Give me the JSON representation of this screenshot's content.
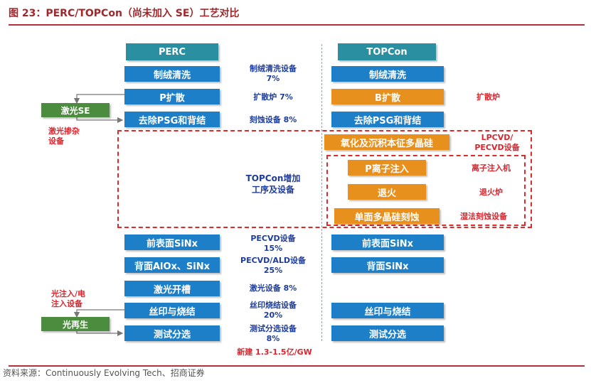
{
  "title": "图 23：PERC/TOPCon（尚未加入 SE）工艺对比",
  "perc": {
    "header": "PERC",
    "steps": [
      "制绒清洗",
      "P扩散",
      "去除PSG和背结",
      "前表面SiNx",
      "背面AlOx、SiNx",
      "激光开槽",
      "丝印与烧结",
      "测试分选"
    ]
  },
  "topcon": {
    "header": "TOPCon",
    "steps": [
      "制绒清洗",
      "B扩散",
      "去除PSG和背结",
      "氧化及沉积本征多晶硅",
      "P离子注入",
      "退火",
      "单面多晶硅刻蚀",
      "前表面SiNx",
      "背面SiNx",
      "丝印与烧结",
      "测试分选"
    ]
  },
  "equipment": [
    {
      "line1": "制绒清洗设备",
      "line2": "7%"
    },
    {
      "line1": "扩散炉 7%",
      "line2": ""
    },
    {
      "line1": "刻蚀设备 8%",
      "line2": ""
    },
    {
      "line1": "PECVD设备",
      "line2": "15%"
    },
    {
      "line1": "PECVD/ALD设备",
      "line2": "25%"
    },
    {
      "line1": "激光设备 8%",
      "line2": ""
    },
    {
      "line1": "丝印烧结设备",
      "line2": "20%"
    },
    {
      "line1": "测试分选设备",
      "line2": "8%"
    }
  ],
  "new_build": "新建 1.3-1.5亿/GW",
  "topcon_added": {
    "line1": "TOPCon增加",
    "line2": "工序及设备"
  },
  "topcon_equipment": {
    "b_diffusion": "扩散炉",
    "lpcvd": {
      "line1": "LPCVD/",
      "line2": "PECVD设备"
    },
    "ion": "离子注入机",
    "anneal": "退火炉",
    "wet_etch": "湿法刻蚀设备"
  },
  "left_side": {
    "laser_se": "激光SE",
    "laser_doping": {
      "line1": "激光掺杂",
      "line2": "设备"
    },
    "light_inject": {
      "line1": "光注入/电",
      "line2": "注入设备"
    },
    "light_regen": "光再生"
  },
  "footer": "资料来源：Continuously Evolving Tech、招商证券",
  "colors": {
    "blue": "#1e7fc9",
    "teal": "#2b8fa2",
    "orange": "#e8901e",
    "green": "#4c8c3f",
    "red": "#d9262e",
    "title_red": "#a0282d"
  }
}
